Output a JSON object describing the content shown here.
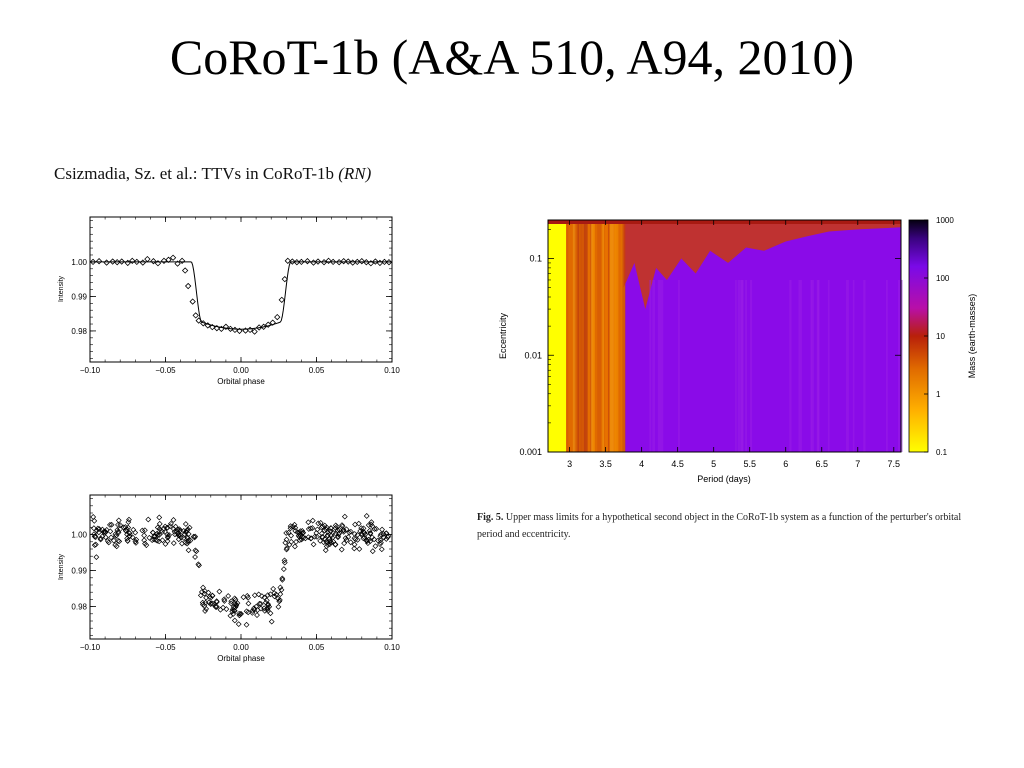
{
  "slide": {
    "title": "CoRoT-1b (A&A 510, A94, 2010)",
    "paper_header": "Csizmadia, Sz. et al.: TTVs in CoRoT-1b",
    "paper_header_italic": "(RN)",
    "caption_label": "Fig. 5.",
    "caption_text": "Upper mass limits for a hypothetical second object in the CoRoT-1b system as a function of the perturber's orbital period and eccentricity."
  },
  "chart_data": [
    {
      "type": "scatter",
      "xlabel": "Orbital phase",
      "ylabel": "Intensity",
      "xlim": [
        -0.1,
        0.1
      ],
      "ylim": [
        0.971,
        1.013
      ],
      "xticks": [
        "−0.10",
        "−0.05",
        "0.00",
        "0.05",
        "0.10"
      ],
      "yticks": [
        "0.98",
        "0.99",
        "1.00"
      ],
      "series": [
        {
          "marker": "diamond",
          "x": [
            -0.098,
            -0.094,
            -0.089,
            -0.085,
            -0.082,
            -0.079,
            -0.075,
            -0.072,
            -0.069,
            -0.065,
            -0.062,
            -0.058,
            -0.055,
            -0.051,
            -0.048,
            -0.045,
            -0.042,
            -0.039,
            -0.037,
            -0.035,
            -0.032,
            -0.03,
            -0.028,
            -0.025,
            -0.022,
            -0.019,
            -0.016,
            -0.013,
            -0.01,
            -0.007,
            -0.004,
            -0.001,
            0.003,
            0.006,
            0.009,
            0.012,
            0.015,
            0.018,
            0.021,
            0.024,
            0.027,
            0.029,
            0.031,
            0.034,
            0.037,
            0.04,
            0.044,
            0.048,
            0.051,
            0.055,
            0.058,
            0.061,
            0.065,
            0.068,
            0.071,
            0.074,
            0.077,
            0.08,
            0.083,
            0.086,
            0.089,
            0.092,
            0.095,
            0.098
          ],
          "y": [
            1.0,
            1.0002,
            0.9998,
            1.0001,
            0.9999,
            1.0001,
            0.9997,
            1.0003,
            1.0,
            0.9998,
            1.0008,
            1.0002,
            0.9996,
            1.0003,
            1.0006,
            1.0012,
            0.9995,
            1.0003,
            0.9975,
            0.993,
            0.9885,
            0.9845,
            0.983,
            0.9822,
            0.9816,
            0.9811,
            0.9808,
            0.9806,
            0.9812,
            0.9806,
            0.9803,
            0.98,
            0.9801,
            0.9803,
            0.9798,
            0.981,
            0.9812,
            0.9818,
            0.9824,
            0.984,
            0.989,
            0.995,
            1.0003,
            1.0001,
            0.9999,
            1.0,
            1.0002,
            0.9998,
            1.0001,
            0.9999,
            1.0003,
            1.0,
            0.9999,
            1.0002,
            1.0001,
            0.9998,
            1.0,
            1.0002,
            0.9999,
            0.9996,
            1.0001,
            0.9997,
            1.0,
            0.9999
          ]
        }
      ],
      "model_curve": {
        "baseline": 1.0,
        "depth": 0.0195,
        "t1": 0.033,
        "t2": 0.026
      }
    },
    {
      "type": "scatter",
      "xlabel": "Orbital phase",
      "ylabel": "Intensity",
      "xlim": [
        -0.1,
        0.1
      ],
      "ylim": [
        0.971,
        1.011
      ],
      "xticks": [
        "−0.10",
        "−0.05",
        "0.00",
        "0.05",
        "0.10"
      ],
      "yticks": [
        "0.98",
        "0.99",
        "1.00"
      ],
      "series": [
        {
          "marker": "diamond",
          "point_count": 420,
          "noise": 0.0018,
          "model": "transit",
          "depth": 0.0205,
          "t1": 0.032,
          "t2": 0.024
        }
      ]
    },
    {
      "type": "heatmap",
      "xlabel": "Period (days)",
      "ylabel": "Eccentricity",
      "xlim": [
        2.7,
        7.6
      ],
      "ylim": [
        0.001,
        0.25
      ],
      "yscale": "log",
      "xticks": [
        "3",
        "3.5",
        "4",
        "4.5",
        "5",
        "5.5",
        "6",
        "6.5",
        "7",
        "7.5"
      ],
      "yticks": [
        "0.001",
        "0.01",
        "0.1"
      ],
      "colorbar": {
        "label": "Mass (earth-masses)",
        "scale": "log",
        "range": [
          0.1,
          1000
        ],
        "ticks": [
          "0.1",
          "1",
          "10",
          "100",
          "1000"
        ]
      },
      "regions": [
        {
          "period_range": [
            2.7,
            2.95
          ],
          "mass": "≤1"
        },
        {
          "period_range": [
            2.95,
            3.75
          ],
          "mass": "≈3–30"
        },
        {
          "period_range": [
            3.75,
            7.6
          ],
          "mass": "≈150"
        }
      ],
      "colors": {
        "low": "#ffff00",
        "mid": "#e06a00",
        "high": "#8a0be8"
      }
    }
  ]
}
